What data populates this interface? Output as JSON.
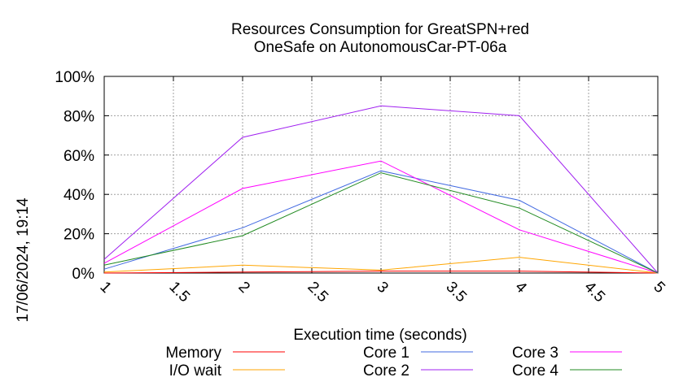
{
  "chart_data": {
    "type": "line",
    "title_lines": [
      "Resources Consumption for GreatSPN+red",
      "OneSafe on AutonomousCar-PT-06a"
    ],
    "xlabel": "Execution time (seconds)",
    "ylabel": "",
    "timestamp": "17/06/2024, 19:14",
    "xlim": [
      1,
      5
    ],
    "ylim": [
      0,
      100
    ],
    "x_ticks": [
      "1",
      "1.5",
      "2",
      "2.5",
      "3",
      "3.5",
      "4",
      "4.5",
      "5"
    ],
    "y_ticks": [
      "0%",
      "20%",
      "40%",
      "60%",
      "80%",
      "100%"
    ],
    "grid": true,
    "legend_position": "bottom",
    "x": [
      1,
      2,
      3,
      4,
      5
    ],
    "series": [
      {
        "name": "Memory",
        "color": "#ff0000",
        "values": [
          0,
          0.5,
          1,
          1,
          0
        ]
      },
      {
        "name": "I/O wait",
        "color": "#ffa500",
        "values": [
          0.5,
          4,
          1.5,
          8,
          0
        ]
      },
      {
        "name": "Core 1",
        "color": "#4169e1",
        "values": [
          2,
          23,
          52,
          37,
          0
        ]
      },
      {
        "name": "Core 2",
        "color": "#a020f0",
        "values": [
          7,
          69,
          85,
          80,
          0
        ]
      },
      {
        "name": "Core 3",
        "color": "#ff00ff",
        "values": [
          5,
          43,
          57,
          22,
          0
        ]
      },
      {
        "name": "Core 4",
        "color": "#228b22",
        "values": [
          4,
          19,
          51,
          33,
          0
        ]
      }
    ]
  }
}
